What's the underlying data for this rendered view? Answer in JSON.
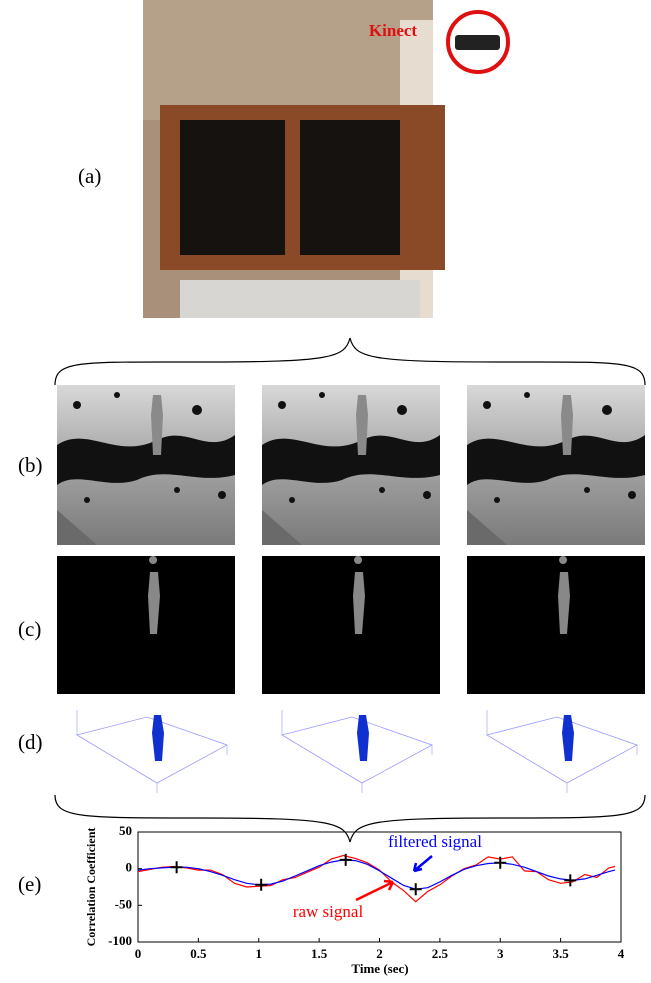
{
  "labels": [
    "(a)",
    "(b)",
    "(c)",
    "(d)",
    "(e)"
  ],
  "photo_annotation": "Kinect",
  "chart_data": {
    "type": "line",
    "xlabel": "Time (sec)",
    "ylabel": "Correlation Coefficient",
    "x": [
      0,
      0.1,
      0.2,
      0.3,
      0.4,
      0.5,
      0.6,
      0.7,
      0.8,
      0.9,
      1.0,
      1.1,
      1.2,
      1.3,
      1.4,
      1.5,
      1.6,
      1.7,
      1.8,
      1.9,
      2.0,
      2.1,
      2.2,
      2.3,
      2.4,
      2.5,
      2.6,
      2.7,
      2.8,
      2.9,
      3.0,
      3.1,
      3.2,
      3.3,
      3.4,
      3.5,
      3.6,
      3.7,
      3.8,
      3.9,
      3.95
    ],
    "series": [
      {
        "name": "filtered signal",
        "color": "#0000ff",
        "values": [
          -2,
          0,
          1,
          2,
          2,
          0,
          -4,
          -9,
          -15,
          -20,
          -22,
          -21,
          -17,
          -10,
          -3,
          4,
          9,
          12,
          11,
          6,
          -3,
          -13,
          -23,
          -28,
          -26,
          -18,
          -9,
          -1,
          4,
          7,
          8,
          6,
          2,
          -4,
          -10,
          -14,
          -16,
          -14,
          -9,
          -4,
          -2
        ]
      },
      {
        "name": "raw signal",
        "color": "#ff0000",
        "values": [
          -4,
          -1,
          2,
          3,
          1,
          -2,
          -2,
          -8,
          -20,
          -25,
          -24,
          -23,
          -15,
          -12,
          -5,
          2,
          13,
          18,
          14,
          8,
          -2,
          -18,
          -30,
          -45,
          -31,
          -22,
          -10,
          0,
          5,
          16,
          13,
          16,
          -3,
          -4,
          -15,
          -20,
          -18,
          -8,
          -12,
          1,
          3
        ]
      }
    ],
    "markers": {
      "x": [
        0.32,
        1.02,
        1.72,
        2.3,
        3.0,
        3.58
      ],
      "y": [
        2,
        -22,
        12,
        -28,
        8,
        -16
      ]
    },
    "xlim": [
      0,
      4
    ],
    "ylim": [
      -100,
      50
    ],
    "xticks": [
      0,
      0.5,
      1,
      1.5,
      2,
      2.5,
      3,
      3.5,
      4
    ],
    "yticks": [
      50,
      0,
      -50,
      -100
    ]
  }
}
